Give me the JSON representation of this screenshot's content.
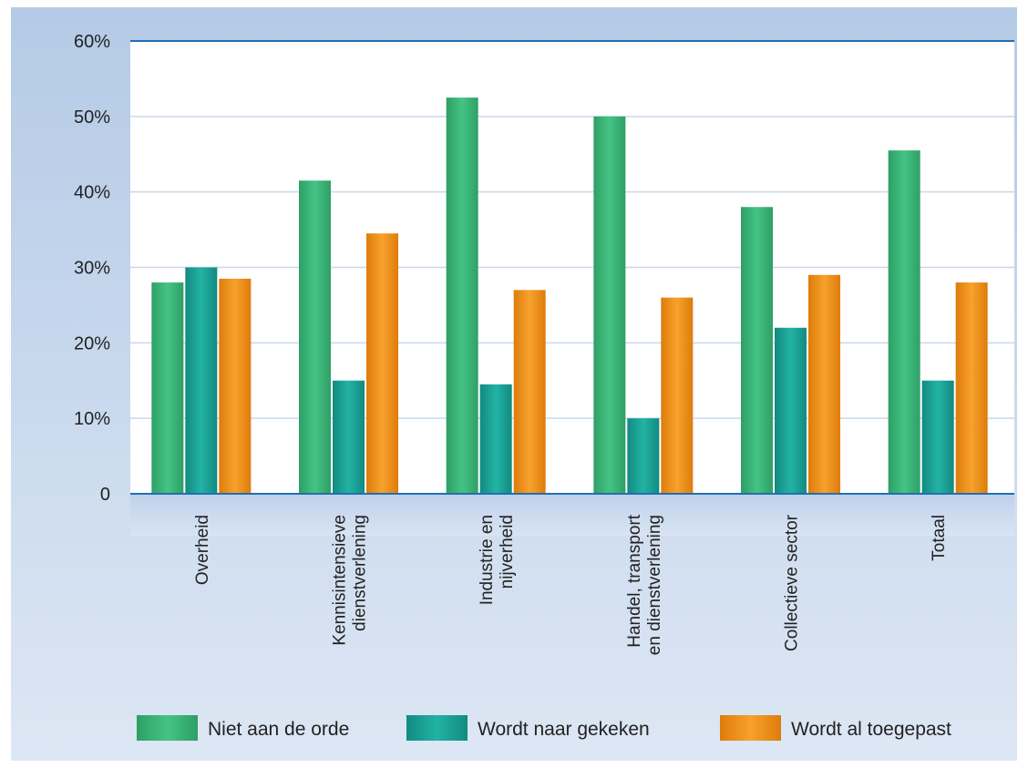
{
  "chart_data": {
    "type": "bar",
    "categories": [
      [
        "Overheid"
      ],
      [
        "Kennisintensieve",
        "dienstverlening"
      ],
      [
        "Industrie en",
        "nijverheid"
      ],
      [
        "Handel, transport",
        "en dienstverlening"
      ],
      [
        "Collectieve sector"
      ],
      [
        "Totaal"
      ]
    ],
    "series": [
      {
        "name": "Niet aan de orde",
        "values": [
          28,
          41.5,
          52.5,
          50,
          38,
          45.5
        ],
        "color": "#3db87a"
      },
      {
        "name": "Wordt naar gekeken",
        "values": [
          30,
          15,
          14.5,
          10,
          22,
          15
        ],
        "color": "#1ba79b"
      },
      {
        "name": "Wordt al toegepast",
        "values": [
          28.5,
          34.5,
          27,
          26,
          29,
          28
        ],
        "color": "#f0911a"
      }
    ],
    "y_ticks": [
      "0",
      "10%",
      "20%",
      "30%",
      "40%",
      "50%",
      "60%"
    ],
    "ylim": [
      0,
      60
    ],
    "grid": true,
    "legend_position": "bottom",
    "title": "",
    "xlabel": "",
    "ylabel": ""
  }
}
